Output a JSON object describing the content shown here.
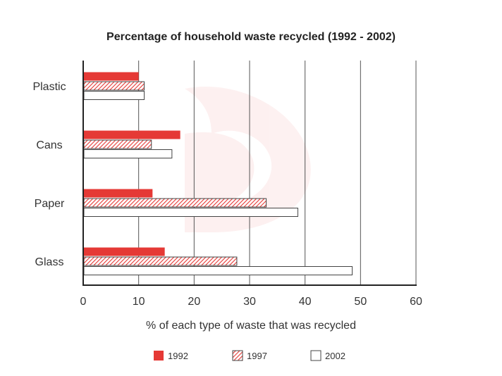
{
  "chart_data": {
    "type": "bar",
    "orientation": "horizontal",
    "title": "Percentage of household waste recycled (1992 - 2002)",
    "xlabel": "% of each type of waste that was recycled",
    "ylabel": "",
    "categories": [
      "Plastic",
      "Cans",
      "Paper",
      "Glass"
    ],
    "series": [
      {
        "name": "1992",
        "values": [
          10,
          17.5,
          12.5,
          14.7
        ],
        "color": "#e53935",
        "pattern": "solid"
      },
      {
        "name": "1997",
        "values": [
          11,
          12.3,
          33,
          27.7
        ],
        "color": "#e53935",
        "pattern": "hatched"
      },
      {
        "name": "2002",
        "values": [
          11,
          16,
          38.7,
          48.5
        ],
        "color": "#ffffff",
        "pattern": "outline"
      }
    ],
    "xlim": [
      0,
      60
    ],
    "xticks": [
      0,
      10,
      20,
      30,
      40,
      50,
      60
    ],
    "grid": "vertical",
    "legend_position": "bottom"
  }
}
